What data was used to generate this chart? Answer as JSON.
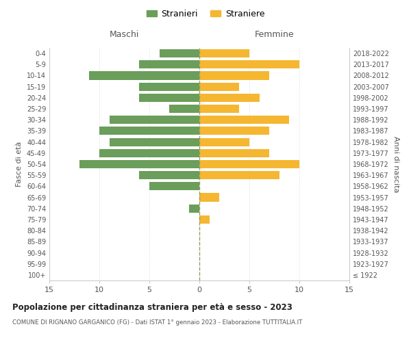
{
  "age_groups": [
    "100+",
    "95-99",
    "90-94",
    "85-89",
    "80-84",
    "75-79",
    "70-74",
    "65-69",
    "60-64",
    "55-59",
    "50-54",
    "45-49",
    "40-44",
    "35-39",
    "30-34",
    "25-29",
    "20-24",
    "15-19",
    "10-14",
    "5-9",
    "0-4"
  ],
  "birth_years": [
    "≤ 1922",
    "1923-1927",
    "1928-1932",
    "1933-1937",
    "1938-1942",
    "1943-1947",
    "1948-1952",
    "1953-1957",
    "1958-1962",
    "1963-1967",
    "1968-1972",
    "1973-1977",
    "1978-1982",
    "1983-1987",
    "1988-1992",
    "1993-1997",
    "1998-2002",
    "2003-2007",
    "2008-2012",
    "2013-2017",
    "2018-2022"
  ],
  "males": [
    0,
    0,
    0,
    0,
    0,
    0,
    1,
    0,
    5,
    6,
    12,
    10,
    9,
    10,
    9,
    3,
    6,
    6,
    11,
    6,
    4
  ],
  "females": [
    0,
    0,
    0,
    0,
    0,
    1,
    0,
    2,
    0,
    8,
    10,
    7,
    5,
    7,
    9,
    4,
    6,
    4,
    7,
    10,
    5
  ],
  "male_color": "#6a9e5a",
  "female_color": "#f5b731",
  "title": "Popolazione per cittadinanza straniera per età e sesso - 2023",
  "subtitle": "COMUNE DI RIGNANO GARGANICO (FG) - Dati ISTAT 1° gennaio 2023 - Elaborazione TUTTITALIA.IT",
  "xlabel_left": "Maschi",
  "xlabel_right": "Femmine",
  "ylabel_left": "Fasce di età",
  "ylabel_right": "Anni di nascita",
  "legend_male": "Stranieri",
  "legend_female": "Straniere",
  "xlim": 15
}
